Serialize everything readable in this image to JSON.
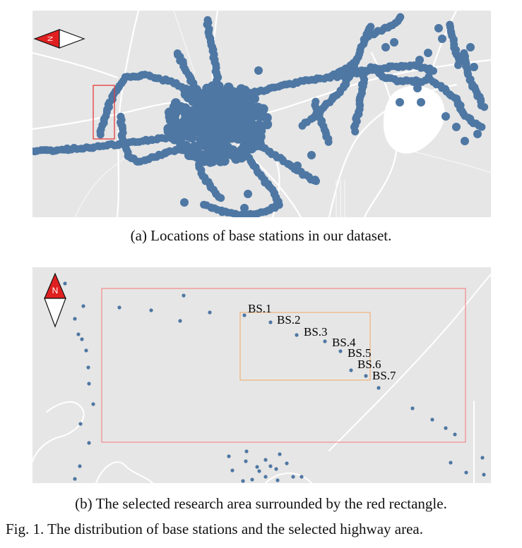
{
  "figure_caption": "Fig. 1.  The distribution of base stations and the selected highway area.",
  "panel_a": {
    "caption": "(a) Locations of base stations in our dataset.",
    "compass_letter": "N",
    "marker_color": "#4e77a3",
    "highlight_color": "#e33c3c"
  },
  "panel_b": {
    "caption": "(b) The selected research area surrounded by the red rectangle.",
    "compass_letter": "N",
    "marker_color": "#4e77a3",
    "research_area_color": "#f28a8a",
    "selection_color": "#f0b27a",
    "base_stations": [
      "BS.1",
      "BS.2",
      "BS.3",
      "BS.4",
      "BS.5",
      "BS.6",
      "BS.7"
    ]
  },
  "colors": {
    "map_background": "#e6e6e6",
    "road": "#ffffff",
    "water": "#ffffff",
    "compass_red": "#e02020"
  }
}
